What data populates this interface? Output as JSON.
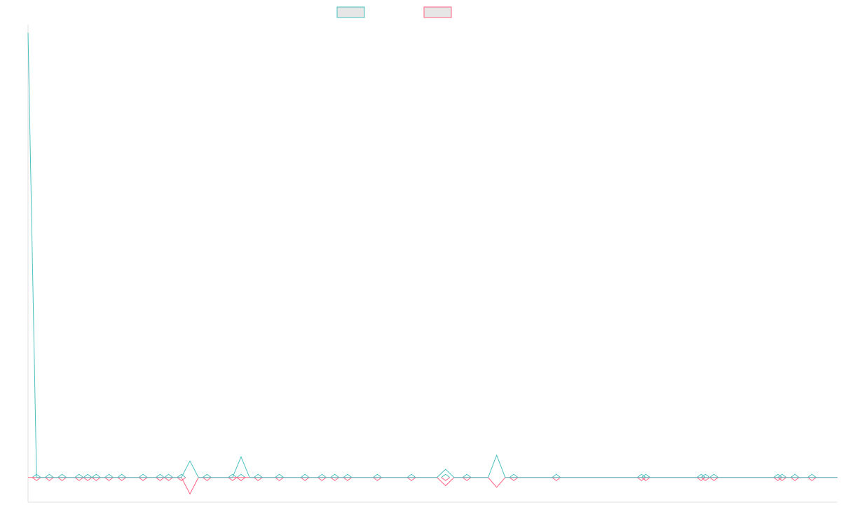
{
  "chart_data": {
    "type": "line",
    "title": "",
    "xlabel": "",
    "ylabel": "",
    "grid": false,
    "legend_position": "top-center",
    "x_count": 96,
    "ylim": [
      -3,
      55
    ],
    "series": [
      {
        "name": "",
        "color": "#4bc0c0",
        "fill": "#e6e6e6",
        "values": [
          54,
          0,
          0,
          0,
          0,
          0,
          0,
          0,
          0,
          0,
          0,
          0,
          0,
          0,
          0,
          0,
          0,
          0,
          0,
          2,
          0,
          0,
          0,
          0,
          0,
          2.5,
          0,
          0,
          0,
          0,
          0,
          0,
          0,
          0,
          0,
          0,
          0,
          0,
          0,
          0,
          0,
          0,
          0,
          0,
          0,
          0,
          0,
          0,
          0,
          1,
          0,
          0,
          0,
          0,
          0,
          2.7,
          0,
          0,
          0,
          0,
          0,
          0,
          0,
          0,
          0,
          0,
          0,
          0,
          0,
          0,
          0,
          0,
          0,
          0,
          0,
          0,
          0,
          0,
          0,
          0,
          0,
          0,
          0,
          0,
          0,
          0,
          0,
          0,
          0,
          0,
          0,
          0,
          0,
          0,
          0,
          0
        ]
      },
      {
        "name": "",
        "color": "#ff6384",
        "fill": "#e6e6e6",
        "values": [
          0,
          0,
          0,
          0,
          0,
          0,
          0,
          0,
          0,
          0,
          0,
          0,
          0,
          0,
          0,
          0,
          0,
          0,
          0,
          -2,
          0,
          0,
          0,
          0,
          0,
          0,
          0,
          0,
          0,
          0,
          0,
          0,
          0,
          0,
          0,
          0,
          0,
          0,
          0,
          0,
          0,
          0,
          0,
          0,
          0,
          0,
          0,
          0,
          0,
          -1,
          0,
          0,
          0,
          0,
          0,
          -1.2,
          0,
          0,
          0,
          0,
          0,
          0,
          0,
          0,
          0,
          0,
          0,
          0,
          0,
          0,
          0,
          0,
          0,
          0,
          0,
          0,
          0,
          0,
          0,
          0,
          0,
          0,
          0,
          0,
          0,
          0,
          0,
          0,
          0,
          0,
          0,
          0,
          0,
          0,
          0,
          0
        ]
      }
    ],
    "markers": [
      1,
      2.5,
      4,
      6,
      7,
      8,
      9.5,
      11,
      13.5,
      15.5,
      16.5,
      18,
      21,
      24,
      25,
      27,
      29.5,
      32.5,
      34.5,
      36,
      37.5,
      41,
      45,
      49,
      51.5,
      57,
      62,
      72,
      72.5,
      79,
      79.5,
      80.5,
      88,
      88.5,
      90,
      92
    ]
  }
}
